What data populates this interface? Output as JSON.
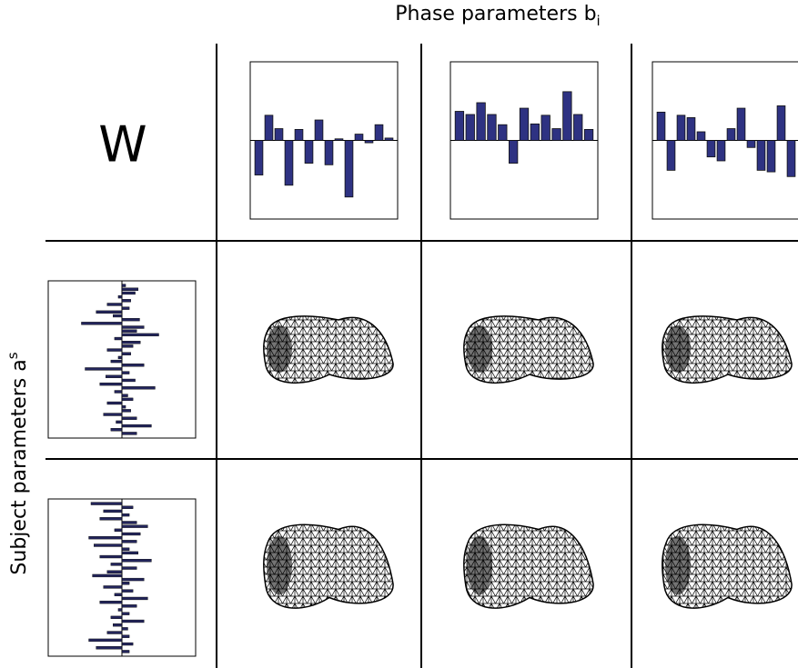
{
  "labels": {
    "top": "Phase parameters b",
    "top_sub": "i",
    "left": "Subject parameters a",
    "left_sup": "s",
    "corner": "W"
  },
  "chart_data": [
    {
      "type": "bar",
      "color": "#2e3282",
      "ylim": [
        -1,
        1
      ],
      "values": [
        -0.44,
        0.32,
        0.15,
        -0.57,
        0.14,
        -0.29,
        0.26,
        -0.31,
        0.02,
        -0.72,
        0.08,
        -0.03,
        0.2,
        0.03
      ]
    },
    {
      "type": "bar",
      "color": "#2e3282",
      "ylim": [
        -1,
        1
      ],
      "values": [
        0.37,
        0.33,
        0.48,
        0.33,
        0.2,
        -0.29,
        0.41,
        0.21,
        0.32,
        0.15,
        0.62,
        0.33,
        0.14
      ]
    },
    {
      "type": "bar",
      "color": "#2e3282",
      "ylim": [
        -1,
        1
      ],
      "values": [
        0.36,
        -0.38,
        0.32,
        0.29,
        0.11,
        -0.21,
        -0.26,
        0.15,
        0.41,
        -0.09,
        -0.38,
        -0.4,
        0.44,
        -0.46
      ]
    },
    {
      "type": "barh",
      "color": "#22245a",
      "xlim": [
        -1,
        1
      ],
      "values": [
        0.05,
        0.22,
        0.18,
        -0.05,
        0.12,
        -0.2,
        0.1,
        -0.35,
        -0.12,
        0.24,
        -0.55,
        0.3,
        0.2,
        0.5,
        -0.1,
        0.25,
        0.15,
        -0.2,
        0.12,
        -0.05,
        -0.15,
        0.3,
        -0.5,
        0.1,
        -0.22,
        0.18,
        -0.3,
        0.45,
        -0.1,
        0.08,
        0.15,
        -0.2,
        0.05,
        0.12,
        -0.25,
        0.2,
        -0.08,
        0.4,
        -0.15,
        0.2
      ]
    },
    {
      "type": "barh",
      "color": "#22245a",
      "xlim": [
        -1,
        1
      ],
      "values": [
        -0.42,
        0.15,
        -0.25,
        0.1,
        -0.3,
        0.2,
        0.35,
        -0.1,
        0.25,
        -0.45,
        0.2,
        -0.38,
        0.1,
        0.22,
        -0.3,
        0.4,
        -0.15,
        0.2,
        -0.2,
        -0.4,
        0.3,
        0.1,
        -0.25,
        0.15,
        -0.1,
        0.35,
        -0.3,
        0.2,
        -0.05,
        0.1,
        -0.15,
        0.3,
        -0.12,
        0.08,
        -0.2,
        0.1,
        -0.45,
        0.15,
        -0.35,
        0.1
      ]
    }
  ]
}
